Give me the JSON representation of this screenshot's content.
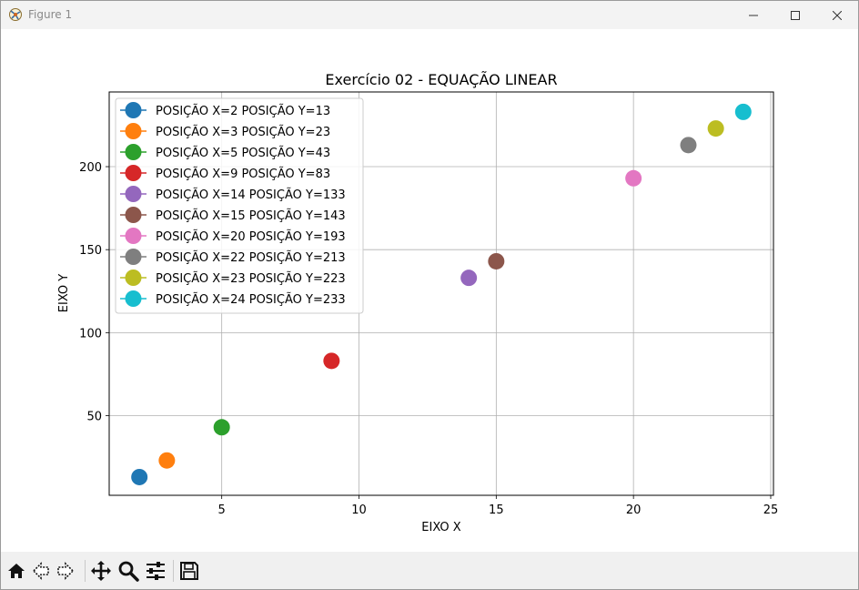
{
  "window": {
    "title": "Figure 1",
    "icons": {
      "app": "matplotlib-figure-icon",
      "minimize": "minimize-icon",
      "maximize": "maximize-icon",
      "close": "close-icon"
    }
  },
  "toolbar": {
    "icons": [
      "home-icon",
      "back-arrow-icon",
      "forward-arrow-icon",
      "pan-move-icon",
      "zoom-magnifier-icon",
      "configure-subplots-icon",
      "save-floppy-icon"
    ]
  },
  "chart_data": {
    "type": "scatter",
    "title": "Exercício 02 - EQUAÇÃO LINEAR",
    "xlabel": "EIXO X",
    "ylabel": "EIXO Y",
    "xlim": [
      0.9,
      25.1
    ],
    "ylim": [
      2,
      245
    ],
    "xticks": [
      5,
      10,
      15,
      20,
      25
    ],
    "yticks": [
      50,
      100,
      150,
      200
    ],
    "grid": true,
    "legend_position": "top-left",
    "series": [
      {
        "name": "POSIÇÃO X=2 POSIÇÃO Y=13",
        "x": [
          2
        ],
        "y": [
          13
        ],
        "color": "#1f77b4"
      },
      {
        "name": "POSIÇÃO X=3 POSIÇÃO Y=23",
        "x": [
          3
        ],
        "y": [
          23
        ],
        "color": "#ff7f0e"
      },
      {
        "name": "POSIÇÃO X=5 POSIÇÃO Y=43",
        "x": [
          5
        ],
        "y": [
          43
        ],
        "color": "#2ca02c"
      },
      {
        "name": "POSIÇÃO X=9 POSIÇÃO Y=83",
        "x": [
          9
        ],
        "y": [
          83
        ],
        "color": "#d62728"
      },
      {
        "name": "POSIÇÃO X=14 POSIÇÃO Y=133",
        "x": [
          14
        ],
        "y": [
          133
        ],
        "color": "#9467bd"
      },
      {
        "name": "POSIÇÃO X=15 POSIÇÃO Y=143",
        "x": [
          15
        ],
        "y": [
          143
        ],
        "color": "#8c564b"
      },
      {
        "name": "POSIÇÃO X=20 POSIÇÃO Y=193",
        "x": [
          20
        ],
        "y": [
          193
        ],
        "color": "#e377c2"
      },
      {
        "name": "POSIÇÃO X=22 POSIÇÃO Y=213",
        "x": [
          22
        ],
        "y": [
          213
        ],
        "color": "#7f7f7f"
      },
      {
        "name": "POSIÇÃO X=23 POSIÇÃO Y=223",
        "x": [
          23
        ],
        "y": [
          223
        ],
        "color": "#bcbd22"
      },
      {
        "name": "POSIÇÃO X=24 POSIÇÃO Y=233",
        "x": [
          24
        ],
        "y": [
          233
        ],
        "color": "#17becf"
      }
    ]
  }
}
